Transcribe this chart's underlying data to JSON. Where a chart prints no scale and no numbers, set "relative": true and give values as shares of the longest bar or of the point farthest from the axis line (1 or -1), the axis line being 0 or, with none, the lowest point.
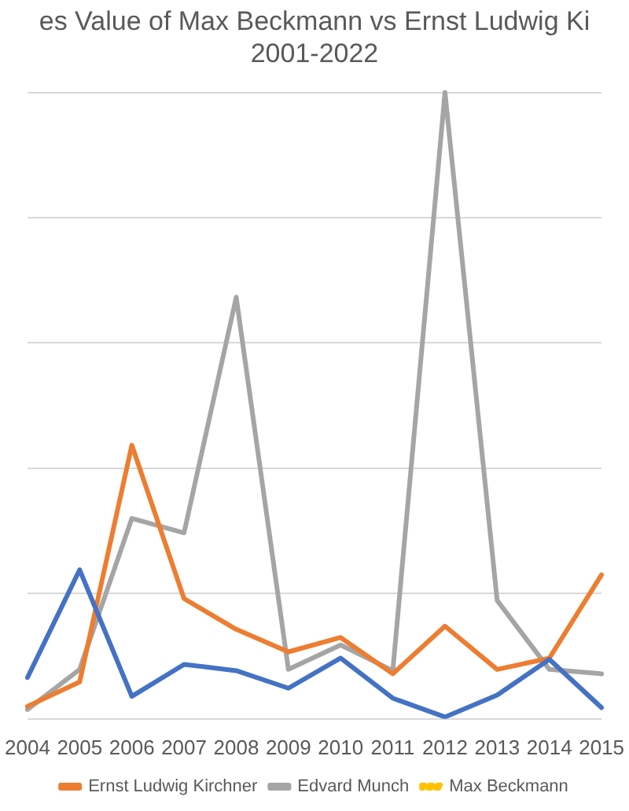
{
  "chart_data": {
    "type": "line",
    "title": "es Value of Max Beckmann vs Ernst Ludwig Ki",
    "subtitle": "2001-2022",
    "categories": [
      "2004",
      "2005",
      "2006",
      "2007",
      "2008",
      "2009",
      "2010",
      "2011",
      "2012",
      "2013",
      "2014",
      "2015"
    ],
    "relative": true,
    "grid": "y",
    "legend": "bottom",
    "marker": "none",
    "series": [
      {
        "color": "#4472c4",
        "values": [
          0.066,
          0.238,
          0.036,
          0.087,
          0.077,
          0.049,
          0.097,
          0.033,
          0.003,
          0.038,
          0.095,
          0.018
        ]
      },
      {
        "name": "Ernst Ludwig Kirchner",
        "color": "#ed7d31",
        "values": [
          0.02,
          0.059,
          0.437,
          0.192,
          0.143,
          0.107,
          0.13,
          0.072,
          0.148,
          0.079,
          0.097,
          0.23
        ]
      },
      {
        "name": "Edvard Munch",
        "color": "#a5a5a5",
        "values": [
          0.015,
          0.079,
          0.32,
          0.297,
          0.673,
          0.079,
          0.118,
          0.077,
          1,
          0.189,
          0.079,
          0.072
        ]
      },
      {
        "name": "Max Beckmann",
        "color": "#ffc000",
        "line_style": "dotted",
        "values": [
          null,
          null,
          null,
          null,
          null,
          null,
          null,
          null,
          null,
          null,
          null,
          null
        ]
      }
    ]
  }
}
